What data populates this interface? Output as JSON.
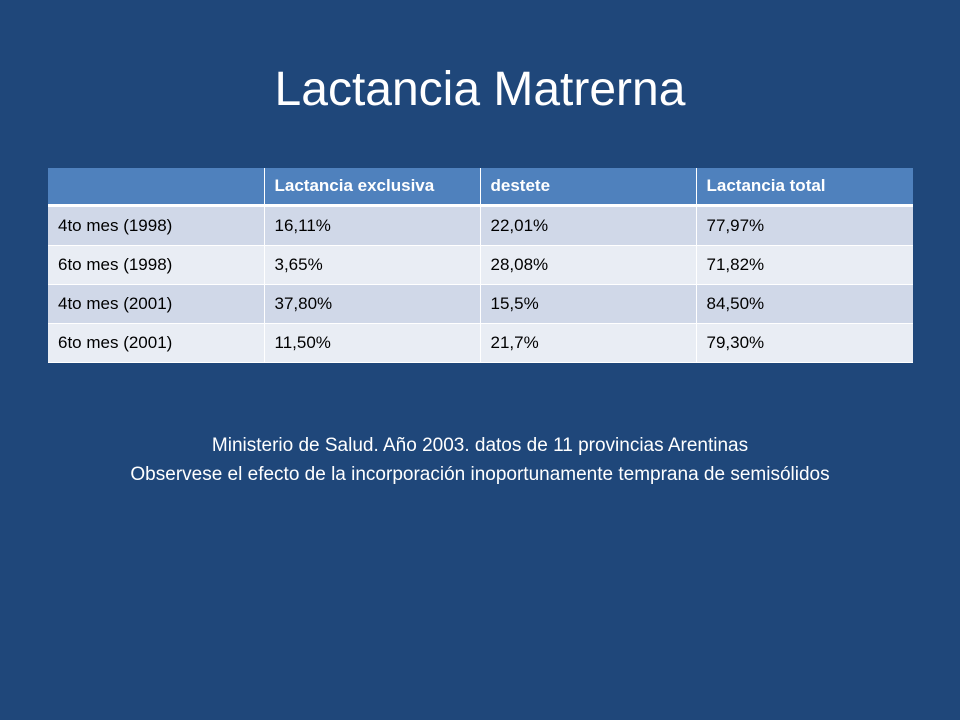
{
  "slide": {
    "title": "Lactancia Matrerna",
    "colors": {
      "background": "#1f477a",
      "header": "#4f81bd",
      "row_odd": "#d0d8e8",
      "row_even": "#e9edf4"
    }
  },
  "table": {
    "headers": [
      "",
      "Lactancia exclusiva",
      "destete",
      "Lactancia total"
    ],
    "rows": [
      [
        "4to mes (1998)",
        "16,11%",
        "22,01%",
        "77,97%"
      ],
      [
        "6to mes (1998)",
        "3,65%",
        "28,08%",
        "71,82%"
      ],
      [
        "4to mes (2001)",
        "37,80%",
        "15,5%",
        "84,50%"
      ],
      [
        "6to mes (2001)",
        "11,50%",
        "21,7%",
        "79,30%"
      ]
    ]
  },
  "notes": {
    "line1": "Ministerio de Salud. Año 2003. datos de 11 provincias Arentinas",
    "line2": "Observese el efecto de la incorporación inoportunamente temprana de semisólidos"
  }
}
